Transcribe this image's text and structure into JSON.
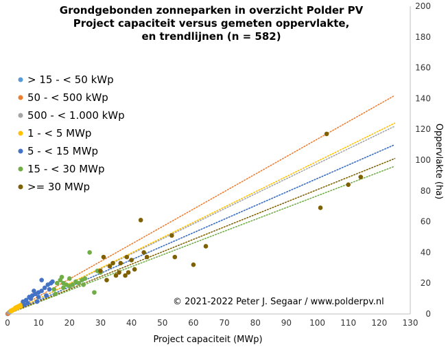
{
  "chart_data": {
    "type": "scatter",
    "title_lines": [
      "Grondgebonden zonneparken in overzicht Polder PV",
      "Project capaciteit  versus gemeten oppervlakte,",
      "en trendlijnen  (n = 582)"
    ],
    "xlabel": "Project capaciteit (MWp)",
    "ylabel": "Oppervlakte  (ha)",
    "xlim": [
      0,
      130
    ],
    "ylim": [
      0,
      200
    ],
    "xticks": [
      0,
      10,
      20,
      30,
      40,
      50,
      60,
      70,
      80,
      90,
      100,
      110,
      120,
      130
    ],
    "yticks": [
      0,
      20,
      40,
      60,
      80,
      100,
      120,
      140,
      160,
      180,
      200
    ],
    "legend_position": "left",
    "copyright": "© 2021-2022  Peter J. Segaar / www.polderpv.nl",
    "trendlines": {
      "style": "dotted",
      "x_range": [
        0,
        125
      ],
      "y_at_125": {
        "> 15 - < 50 kWp": 110,
        "50 - < 500 kWp": 142,
        "500 - < 1.000 kWp": 122,
        "1 - < 5 MWp": 124,
        "5 - < 15 MWp": 110,
        "15 - < 30 MWp": 96,
        ">= 30 MWp": 101
      }
    },
    "series": [
      {
        "name": "> 15 - < 50 kWp",
        "color": "#5b9bd5",
        "points": [
          [
            0.02,
            0.05
          ],
          [
            0.03,
            0.08
          ],
          [
            0.04,
            0.1
          ]
        ]
      },
      {
        "name": "50 - < 500 kWp",
        "color": "#ed7d31",
        "points": [
          [
            0.1,
            0.2
          ],
          [
            0.2,
            0.4
          ],
          [
            0.3,
            0.5
          ],
          [
            0.4,
            0.6
          ]
        ]
      },
      {
        "name": "500 - < 1.000 kWp",
        "color": "#a5a5a5",
        "points": [
          [
            0.5,
            1
          ],
          [
            0.6,
            1.2
          ],
          [
            0.7,
            1.3
          ],
          [
            0.8,
            1.5
          ],
          [
            0.9,
            1.6
          ]
        ]
      },
      {
        "name": "1 - < 5 MWp",
        "color": "#ffc000",
        "points": [
          [
            1,
            2
          ],
          [
            1.5,
            2.5
          ],
          [
            2,
            3
          ],
          [
            2.5,
            4
          ],
          [
            3,
            4.5
          ],
          [
            3.5,
            5
          ],
          [
            4,
            5.5
          ],
          [
            4.5,
            6
          ],
          [
            1.2,
            1.8
          ],
          [
            2.2,
            2.8
          ],
          [
            3.2,
            3.8
          ],
          [
            4.2,
            4.8
          ]
        ]
      },
      {
        "name": "5 - < 15 MWp",
        "color": "#4472c4",
        "points": [
          [
            5,
            8
          ],
          [
            6,
            9
          ],
          [
            7,
            11
          ],
          [
            8,
            12
          ],
          [
            9,
            13
          ],
          [
            10,
            14
          ],
          [
            11,
            15
          ],
          [
            12,
            17
          ],
          [
            13,
            19
          ],
          [
            14,
            20
          ],
          [
            6.5,
            7
          ],
          [
            7.5,
            10
          ],
          [
            9.5,
            8
          ],
          [
            11,
            22
          ],
          [
            12.5,
            12
          ],
          [
            13.5,
            16
          ],
          [
            10,
            11
          ],
          [
            8.5,
            15
          ],
          [
            5.5,
            6
          ],
          [
            14.5,
            21
          ]
        ]
      },
      {
        "name": "15 - < 30 MWp",
        "color": "#70ad47",
        "points": [
          [
            15,
            16
          ],
          [
            16,
            20
          ],
          [
            17,
            22
          ],
          [
            18,
            20
          ],
          [
            19,
            19
          ],
          [
            20,
            18
          ],
          [
            21,
            19
          ],
          [
            22,
            21
          ],
          [
            23,
            20
          ],
          [
            24,
            22
          ],
          [
            25,
            23
          ],
          [
            26.5,
            40
          ],
          [
            28,
            14
          ],
          [
            29,
            28
          ],
          [
            30,
            27
          ],
          [
            20,
            23
          ],
          [
            18,
            17
          ],
          [
            15.5,
            13
          ],
          [
            17.5,
            24
          ],
          [
            24.5,
            19
          ]
        ]
      },
      {
        "name": ">= 30 MWp",
        "color": "#7f6000",
        "points": [
          [
            30,
            28
          ],
          [
            31,
            37
          ],
          [
            32,
            22
          ],
          [
            33,
            31
          ],
          [
            35,
            25
          ],
          [
            36,
            27
          ],
          [
            38,
            25
          ],
          [
            38.5,
            37
          ],
          [
            39,
            27
          ],
          [
            40,
            35
          ],
          [
            43,
            61
          ],
          [
            44,
            40
          ],
          [
            45,
            37
          ],
          [
            53,
            51
          ],
          [
            54,
            37
          ],
          [
            60,
            32
          ],
          [
            64,
            44
          ],
          [
            101,
            69
          ],
          [
            103,
            117
          ],
          [
            110,
            84
          ],
          [
            114,
            89
          ],
          [
            34,
            33
          ],
          [
            36.5,
            33
          ],
          [
            41,
            29
          ]
        ]
      }
    ]
  }
}
